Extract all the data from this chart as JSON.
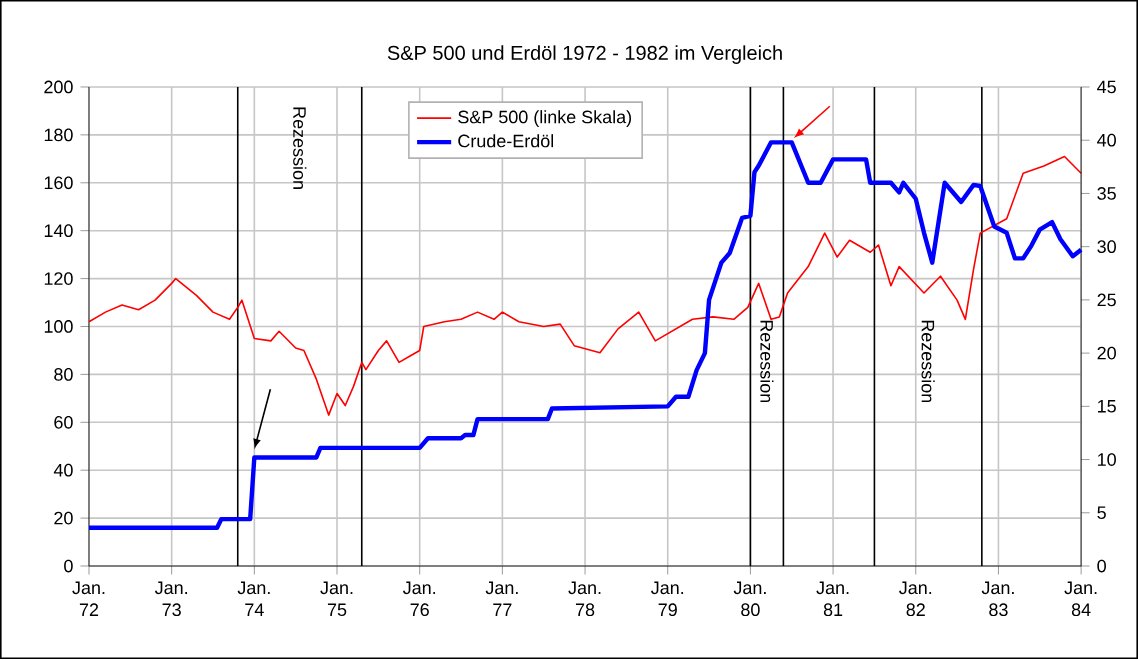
{
  "chart_data": {
    "type": "line",
    "title": "S&P 500 und Erdöl 1972 - 1982 im Vergleich",
    "xlim": [
      "1972-01",
      "1984-01"
    ],
    "xticks": [
      {
        "value": "1972-01",
        "label": "Jan. 72"
      },
      {
        "value": "1973-01",
        "label": "Jan. 73"
      },
      {
        "value": "1974-01",
        "label": "Jan. 74"
      },
      {
        "value": "1975-01",
        "label": "Jan. 75"
      },
      {
        "value": "1976-01",
        "label": "Jan. 76"
      },
      {
        "value": "1977-01",
        "label": "Jan. 77"
      },
      {
        "value": "1978-01",
        "label": "Jan. 78"
      },
      {
        "value": "1979-01",
        "label": "Jan. 79"
      },
      {
        "value": "1980-01",
        "label": "Jan. 80"
      },
      {
        "value": "1981-01",
        "label": "Jan. 81"
      },
      {
        "value": "1982-01",
        "label": "Jan. 82"
      },
      {
        "value": "1983-01",
        "label": "Jan. 83"
      },
      {
        "value": "1984-01",
        "label": "Jan. 84"
      }
    ],
    "ylim": [
      0,
      200
    ],
    "yticks": [
      0,
      20,
      40,
      60,
      80,
      100,
      120,
      140,
      160,
      180,
      200
    ],
    "y2lim": [
      0,
      45
    ],
    "y2ticks": [
      0,
      5,
      10,
      15,
      20,
      25,
      30,
      35,
      40,
      45
    ],
    "grid": true,
    "legend": "top",
    "series": [
      {
        "name": "S&P 500 (linke Skala)",
        "color": "#ff0000",
        "x": [
          "1972-01-01",
          "1972-03-13",
          "1972-05-25",
          "1972-08-07",
          "1972-10-19",
          "1973-01-01",
          "1973-01-19",
          "1973-04-19",
          "1973-07-01",
          "1973-09-13",
          "1973-10-19",
          "1973-11-07",
          "1974-01-01",
          "1974-03-13",
          "1974-04-19",
          "1974-07-01",
          "1974-08-07",
          "1974-10-01",
          "1974-11-25",
          "1975-01-01",
          "1975-02-07",
          "1975-03-13",
          "1975-04-19",
          "1975-05-07",
          "1975-07-01",
          "1975-08-07",
          "1975-10-01",
          "1975-11-25",
          "1976-01-01",
          "1976-01-19",
          "1976-04-19",
          "1976-07-01",
          "1976-09-13",
          "1976-11-25",
          "1977-01-01",
          "1977-03-13",
          "1977-07-01",
          "1977-09-13",
          "1977-11-14",
          "1978-03-06",
          "1978-05-25",
          "1978-08-25",
          "1978-11-07",
          "1979-04-19",
          "1979-07-19",
          "1979-10-19",
          "1979-12-20",
          "1980-02-07",
          "1980-04-01",
          "1980-05-07",
          "1980-06-13",
          "1980-09-13",
          "1980-11-25",
          "1981-01-19",
          "1981-03-13",
          "1981-06-13",
          "1981-07-19",
          "1981-09-13",
          "1981-10-19",
          "1982-02-07",
          "1982-04-19",
          "1982-07-01",
          "1982-08-07",
          "1982-09-13",
          "1982-10-12",
          "1983-02-07",
          "1983-04-19",
          "1983-07-19",
          "1983-10-19",
          "1984-01-01"
        ],
        "values": [
          102,
          106,
          109,
          107,
          111,
          118,
          120,
          113,
          106,
          103,
          108,
          111,
          95,
          94,
          98,
          91,
          90,
          78,
          63,
          72,
          67,
          75,
          85,
          82,
          90,
          94,
          85,
          88,
          90,
          100,
          102,
          103,
          106,
          103,
          106,
          102,
          100,
          101,
          92,
          89,
          99,
          106,
          94,
          103,
          104,
          103,
          108,
          118,
          103,
          104,
          114,
          125,
          139,
          129,
          136,
          131,
          134,
          117,
          125,
          114,
          121,
          111,
          103,
          124,
          139,
          145,
          164,
          167,
          171,
          164
        ]
      },
      {
        "name": "Crude-Erdöl",
        "color": "#0000ff",
        "axis": "y2",
        "x": [
          "1972-01-01",
          "1973-07-19",
          "1973-08-07",
          "1973-12-13",
          "1974-01-01",
          "1974-10-01",
          "1974-10-19",
          "1976-01-01",
          "1976-02-07",
          "1976-07-01",
          "1976-07-19",
          "1976-08-25",
          "1976-09-13",
          "1977-07-19",
          "1977-08-07",
          "1979-01-01",
          "1979-02-07",
          "1979-04-01",
          "1979-05-07",
          "1979-06-13",
          "1979-07-01",
          "1979-08-25",
          "1979-10-01",
          "1979-11-25",
          "1980-01-01",
          "1980-01-19",
          "1980-02-07",
          "1980-04-01",
          "1980-07-01",
          "1980-09-13",
          "1980-11-07",
          "1981-01-01",
          "1981-05-25",
          "1981-06-13",
          "1981-09-13",
          "1981-10-19",
          "1981-11-07",
          "1982-01-01",
          "1982-02-07",
          "1982-03-13",
          "1982-05-07",
          "1982-07-19",
          "1982-09-13",
          "1982-10-12",
          "1982-12-13",
          "1983-02-07",
          "1983-03-13",
          "1983-04-19",
          "1983-05-25",
          "1983-07-01",
          "1983-08-25",
          "1983-10-01",
          "1983-11-25",
          "1984-01-01"
        ],
        "values": [
          3.6,
          3.6,
          4.4,
          4.4,
          10.2,
          10.2,
          11.1,
          11.1,
          12.0,
          12.0,
          12.3,
          12.3,
          13.8,
          13.8,
          14.8,
          15.0,
          15.9,
          15.9,
          18.4,
          20.0,
          25.0,
          28.5,
          29.4,
          32.7,
          32.9,
          37.0,
          37.6,
          39.8,
          39.8,
          36.0,
          36.0,
          38.2,
          38.2,
          36.0,
          36.0,
          35.1,
          36.0,
          34.5,
          31.3,
          28.5,
          36.0,
          34.2,
          35.8,
          35.7,
          31.9,
          31.3,
          28.9,
          28.9,
          30.1,
          31.6,
          32.3,
          30.7,
          29.1,
          29.7
        ]
      }
    ],
    "ref_lines": [
      {
        "axis": "x",
        "value": "1973-10-19"
      },
      {
        "axis": "x",
        "value": "1975-04-19"
      },
      {
        "axis": "x",
        "value": "1980-01-01"
      },
      {
        "axis": "x",
        "value": "1980-05-25"
      },
      {
        "axis": "x",
        "value": "1981-07-01"
      },
      {
        "axis": "x",
        "value": "1982-10-19"
      }
    ],
    "annotations": [
      "Rezession",
      "Rezession",
      "Rezession"
    ]
  }
}
